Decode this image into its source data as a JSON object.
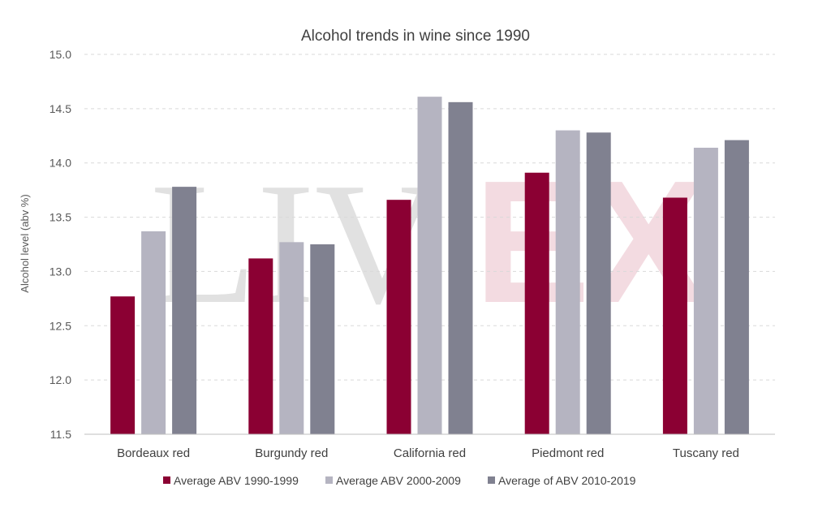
{
  "chart_data": {
    "type": "bar",
    "title": "Alcohol trends in wine since 1990",
    "xlabel": "",
    "ylabel": "Alcohol level (abv %)",
    "ylim": [
      11.5,
      15.0
    ],
    "yticks": [
      "11.5",
      "12.0",
      "12.5",
      "13.0",
      "13.5",
      "14.0",
      "14.5",
      "15.0"
    ],
    "grid": true,
    "legend_position": "bottom",
    "categories": [
      "Bordeaux red",
      "Burgundy red",
      "California red",
      "Piedmont red",
      "Tuscany red"
    ],
    "series": [
      {
        "name": "Average ABV 1990-1999",
        "color": "#8b0033",
        "values": [
          12.77,
          13.12,
          13.66,
          13.91,
          13.68
        ]
      },
      {
        "name": "Average ABV 2000-2009",
        "color": "#b5b4c1",
        "values": [
          13.37,
          13.27,
          14.61,
          14.3,
          14.14
        ]
      },
      {
        "name": "Average of ABV 2010-2019",
        "color": "#808190",
        "values": [
          13.78,
          13.25,
          14.56,
          14.28,
          14.21
        ]
      }
    ]
  },
  "watermark": {
    "part1": "LIV",
    "part2": "EX"
  }
}
